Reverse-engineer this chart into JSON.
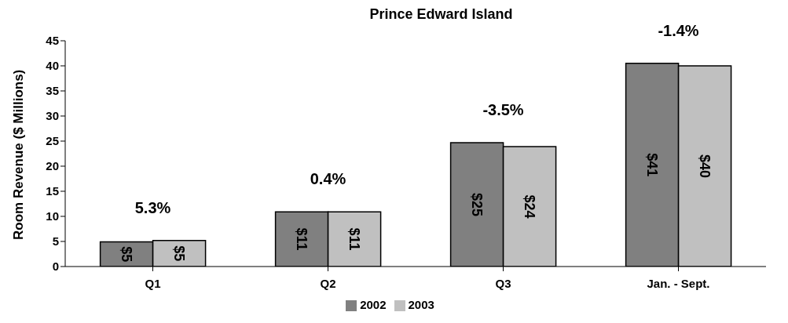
{
  "chart_data": {
    "type": "bar",
    "title": "Prince Edward Island",
    "ylabel": "Room Revenue ($ Millions)",
    "categories": [
      "Q1",
      "Q2",
      "Q3",
      "Jan. - Sept."
    ],
    "series": [
      {
        "name": "2002",
        "color": "#808080",
        "values": [
          4.9,
          10.9,
          24.7,
          40.5
        ],
        "value_labels": [
          "$5",
          "$11",
          "$25",
          "$41"
        ]
      },
      {
        "name": "2003",
        "color": "#c0c0c0",
        "values": [
          5.2,
          10.9,
          23.9,
          40.0
        ],
        "value_labels": [
          "$5",
          "$11",
          "$24",
          "$40"
        ]
      }
    ],
    "ylim": [
      0,
      45
    ],
    "yticks": [
      0,
      5,
      10,
      15,
      20,
      25,
      30,
      35,
      40,
      45
    ],
    "grid": false,
    "legend": "bottom",
    "annotations": [
      "5.3%",
      "0.4%",
      "-3.5%",
      "-1.4%"
    ]
  }
}
